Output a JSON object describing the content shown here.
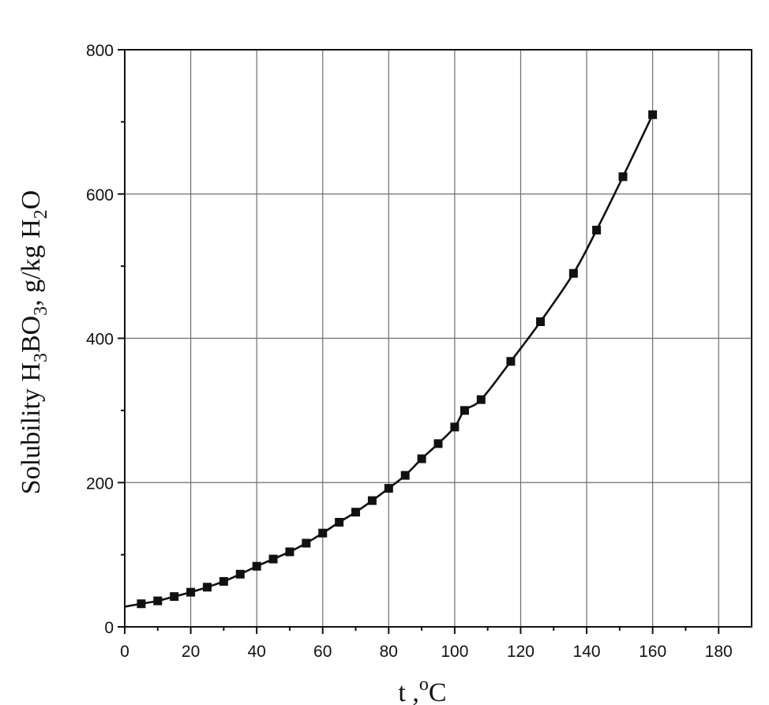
{
  "chart_data": {
    "type": "scatter",
    "xlabel_parts": [
      "t ,",
      "o",
      "C"
    ],
    "ylabel_parts": [
      "Solubility H",
      "3",
      "BO",
      "3",
      ", g/kg H",
      "2",
      "O"
    ],
    "xlim": [
      0,
      190
    ],
    "ylim": [
      0,
      800
    ],
    "x_ticks": [
      0,
      20,
      40,
      60,
      80,
      100,
      120,
      140,
      160,
      180
    ],
    "y_ticks": [
      0,
      200,
      400,
      600,
      800
    ],
    "grid": true,
    "series": [
      {
        "x": [
          0,
          5,
          10,
          15,
          20,
          25,
          30,
          35,
          40,
          45,
          50,
          55,
          60,
          65,
          70,
          75,
          80,
          85,
          90,
          95,
          100,
          103,
          108,
          117,
          126,
          136,
          143,
          151,
          160
        ],
        "y": [
          28,
          32,
          36,
          42,
          48,
          55,
          63,
          73,
          84,
          94,
          104,
          116,
          130,
          145,
          159,
          175,
          192,
          210,
          233,
          254,
          277,
          300,
          315,
          368,
          423,
          490,
          550,
          624,
          710
        ],
        "marker": "square",
        "color": "#111111",
        "line": "smooth"
      }
    ]
  }
}
